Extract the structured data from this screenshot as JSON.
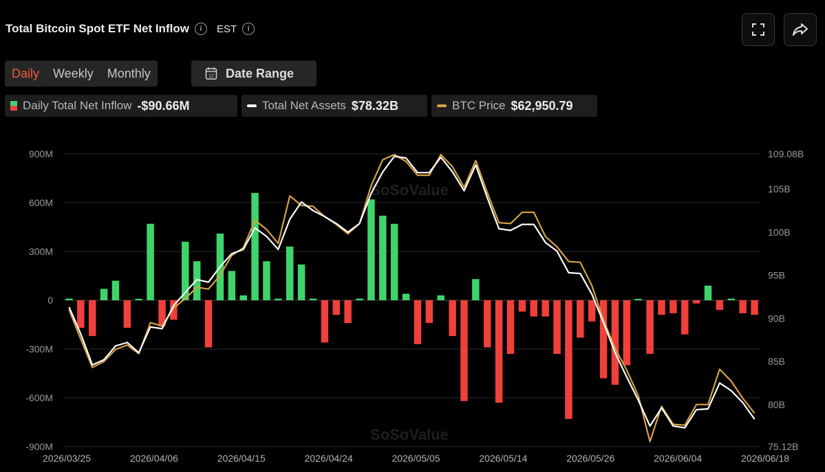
{
  "header": {
    "title": "Total Bitcoin Spot ETF Net Inflow",
    "timezone": "EST"
  },
  "icons": {
    "info": "info-icon",
    "fullscreen": "fullscreen-icon",
    "share": "share-icon",
    "calendar": "calendar-icon"
  },
  "period_tabs": [
    {
      "label": "Daily",
      "active": true
    },
    {
      "label": "Weekly",
      "active": false
    },
    {
      "label": "Monthly",
      "active": false
    }
  ],
  "date_range": {
    "label": "Date Range",
    "icon_text": "12"
  },
  "legend": [
    {
      "name": "Daily Total Net Inflow",
      "value": "-$90.66M",
      "type": "bar"
    },
    {
      "name": "Total Net Assets",
      "value": "$78.32B",
      "type": "line",
      "color": "#ffffff"
    },
    {
      "name": "BTC Price",
      "value": "$62,950.79",
      "type": "line",
      "color": "#d7a044"
    }
  ],
  "colors": {
    "positive": "#3fd46b",
    "negative": "#f0403b",
    "assets_line": "#ffffff",
    "price_line": "#d7a044"
  },
  "watermark": "SoSoValue",
  "chart_data": {
    "type": "bar",
    "title": "Total Bitcoin Spot ETF Net Inflow",
    "y_left": {
      "label": "Daily Total Net Inflow",
      "range": [
        -900,
        900
      ],
      "unit": "M",
      "ticks": [
        "900M",
        "600M",
        "300M",
        "0",
        "-300M",
        "-600M",
        "-900M"
      ]
    },
    "y_right": {
      "label": "Total Net Assets",
      "range": [
        75.12,
        109.08
      ],
      "unit": "B",
      "ticks": [
        "109.08B",
        "105B",
        "100B",
        "95B",
        "90B",
        "85B",
        "80B",
        "75.12B"
      ]
    },
    "x_ticks": [
      "2026/03/25",
      "2026/04/06",
      "2026/04/15",
      "2026/04/24",
      "2026/05/05",
      "2026/05/14",
      "2026/05/26",
      "2026/06/04",
      "2026/06/18"
    ],
    "daily_net_inflow": [
      10,
      -170,
      -220,
      70,
      120,
      -170,
      5,
      470,
      -160,
      -120,
      360,
      240,
      -290,
      410,
      180,
      30,
      660,
      240,
      10,
      330,
      220,
      10,
      -260,
      -90,
      -140,
      10,
      620,
      520,
      470,
      40,
      -270,
      -140,
      30,
      -220,
      -620,
      130,
      -290,
      -630,
      -330,
      -70,
      -100,
      -100,
      -330,
      -730,
      -230,
      -130,
      -480,
      -520,
      -400,
      0,
      -330,
      -90,
      -80,
      -210,
      -20,
      90,
      -60,
      10,
      -80,
      -90
    ],
    "series": [
      {
        "name": "Total Net Assets",
        "values": [
          91.3,
          88.2,
          84.6,
          85.2,
          86.8,
          87.2,
          86.0,
          89.0,
          88.8,
          91.5,
          93.0,
          94.5,
          94.2,
          96.0,
          97.5,
          98.0,
          100.5,
          99.5,
          98.0,
          101.5,
          103.5,
          102.5,
          101.8,
          101.0,
          100.0,
          101.0,
          104.5,
          107.0,
          108.8,
          108.6,
          106.9,
          106.9,
          108.7,
          107.0,
          104.8,
          107.8,
          104.0,
          100.4,
          100.2,
          100.9,
          100.9,
          98.8,
          97.8,
          95.3,
          95.2,
          92.8,
          89.5,
          86.0,
          83.2,
          80.5,
          77.5,
          79.6,
          77.5,
          77.3,
          79.4,
          79.5,
          82.5,
          81.6,
          80.2,
          78.3
        ]
      },
      {
        "name": "BTC Price",
        "values": [
          91.0,
          87.6,
          84.3,
          85.0,
          86.4,
          86.9,
          85.9,
          89.5,
          89.1,
          91.2,
          92.3,
          93.6,
          93.4,
          95.0,
          97.3,
          98.2,
          101.4,
          100.3,
          98.7,
          104.2,
          103.1,
          103.0,
          101.8,
          100.9,
          99.8,
          101.0,
          105.4,
          108.4,
          109.0,
          108.2,
          106.6,
          106.6,
          109.0,
          107.6,
          105.2,
          108.3,
          104.6,
          101.1,
          101.0,
          102.3,
          102.3,
          99.5,
          98.3,
          96.6,
          96.5,
          93.8,
          89.8,
          86.5,
          84.0,
          81.0,
          75.7,
          79.8,
          77.7,
          77.6,
          80.0,
          80.0,
          84.1,
          82.7,
          80.7,
          79.0
        ]
      }
    ]
  }
}
